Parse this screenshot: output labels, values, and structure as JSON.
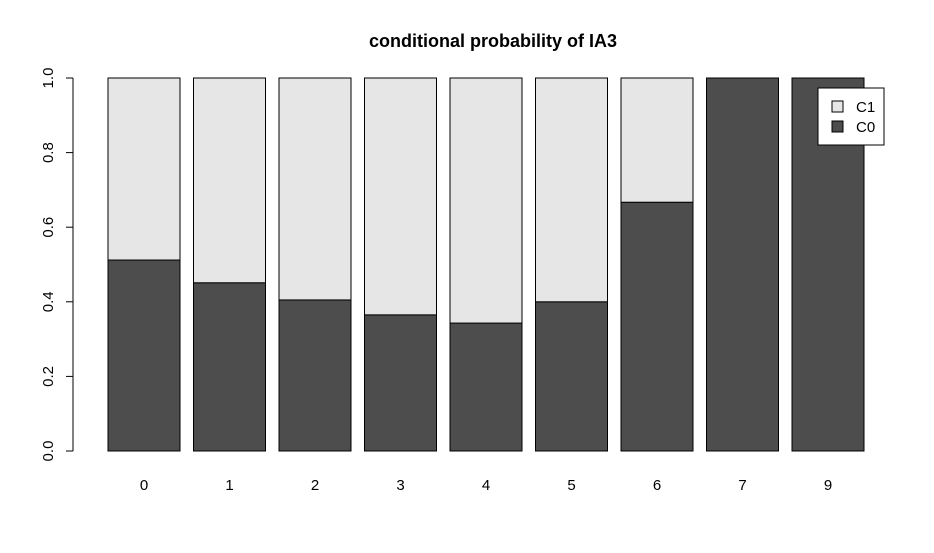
{
  "chart_data": {
    "type": "bar",
    "stacked": true,
    "title": "conditional probability of  IA3",
    "xlabel": "",
    "ylabel": "",
    "categories": [
      "0",
      "1",
      "2",
      "3",
      "4",
      "5",
      "6",
      "7",
      "9"
    ],
    "series": [
      {
        "name": "C0",
        "values": [
          0.512,
          0.451,
          0.405,
          0.365,
          0.343,
          0.4,
          0.667,
          1.0,
          1.0
        ],
        "color": "#4d4d4d"
      },
      {
        "name": "C1",
        "values": [
          0.488,
          0.549,
          0.595,
          0.635,
          0.657,
          0.6,
          0.333,
          0.0,
          0.0
        ],
        "color": "#e6e6e6"
      }
    ],
    "ylim": [
      0,
      1
    ],
    "yticks": [
      "0.0",
      "0.2",
      "0.4",
      "0.6",
      "0.8",
      "1.0"
    ],
    "grid": false,
    "legend": {
      "position": "top-right",
      "entries": [
        "C1",
        "C0"
      ]
    }
  }
}
